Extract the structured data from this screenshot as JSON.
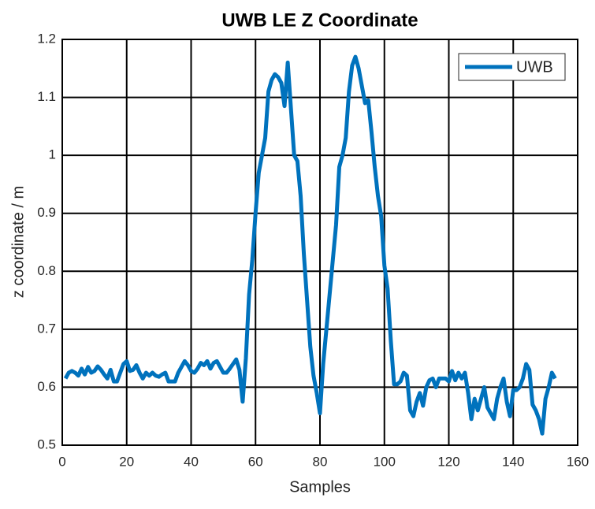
{
  "chart_data": {
    "type": "line",
    "title": "UWB LE Z Coordinate",
    "x_label": "Samples",
    "y_label": "z coordinate / m",
    "x": [
      1,
      2,
      3,
      4,
      5,
      6,
      7,
      8,
      9,
      10,
      11,
      12,
      13,
      14,
      15,
      16,
      17,
      18,
      19,
      20,
      21,
      22,
      23,
      24,
      25,
      26,
      27,
      28,
      29,
      30,
      31,
      32,
      33,
      34,
      35,
      36,
      37,
      38,
      39,
      40,
      41,
      42,
      43,
      44,
      45,
      46,
      47,
      48,
      49,
      50,
      51,
      52,
      53,
      54,
      55,
      56,
      57,
      58,
      59,
      60,
      61,
      62,
      63,
      64,
      65,
      66,
      67,
      68,
      69,
      70,
      71,
      72,
      73,
      74,
      75,
      76,
      77,
      78,
      79,
      80,
      81,
      82,
      83,
      84,
      85,
      86,
      87,
      88,
      89,
      90,
      91,
      92,
      93,
      94,
      95,
      96,
      97,
      98,
      99,
      100,
      101,
      102,
      103,
      104,
      105,
      106,
      107,
      108,
      109,
      110,
      111,
      112,
      113,
      114,
      115,
      116,
      117,
      118,
      119,
      120,
      121,
      122,
      123,
      124,
      125,
      126,
      127,
      128,
      129,
      130,
      131,
      132,
      133,
      134,
      135,
      136,
      137,
      138,
      139,
      140,
      141,
      142,
      143,
      144,
      145,
      146,
      147,
      148,
      149,
      150,
      151,
      152,
      153
    ],
    "series": [
      {
        "name": "UWB",
        "color": "#0072bd",
        "values": [
          0.615,
          0.625,
          0.628,
          0.625,
          0.62,
          0.632,
          0.622,
          0.635,
          0.625,
          0.628,
          0.636,
          0.63,
          0.622,
          0.615,
          0.63,
          0.61,
          0.61,
          0.625,
          0.64,
          0.645,
          0.628,
          0.63,
          0.638,
          0.625,
          0.615,
          0.625,
          0.62,
          0.625,
          0.62,
          0.618,
          0.622,
          0.625,
          0.61,
          0.61,
          0.61,
          0.625,
          0.635,
          0.645,
          0.638,
          0.628,
          0.625,
          0.632,
          0.642,
          0.638,
          0.645,
          0.632,
          0.642,
          0.645,
          0.635,
          0.625,
          0.625,
          0.632,
          0.64,
          0.648,
          0.63,
          0.575,
          0.65,
          0.76,
          0.82,
          0.9,
          0.97,
          1.0,
          1.03,
          1.11,
          1.13,
          1.14,
          1.135,
          1.125,
          1.085,
          1.16,
          1.08,
          1.0,
          0.99,
          0.93,
          0.83,
          0.75,
          0.67,
          0.62,
          0.59,
          0.555,
          0.64,
          0.7,
          0.76,
          0.82,
          0.88,
          0.98,
          1.0,
          1.03,
          1.11,
          1.155,
          1.17,
          1.15,
          1.12,
          1.09,
          1.095,
          1.04,
          0.98,
          0.93,
          0.895,
          0.81,
          0.77,
          0.68,
          0.605,
          0.605,
          0.61,
          0.625,
          0.62,
          0.56,
          0.55,
          0.575,
          0.59,
          0.568,
          0.6,
          0.612,
          0.615,
          0.6,
          0.615,
          0.615,
          0.615,
          0.61,
          0.628,
          0.612,
          0.625,
          0.615,
          0.625,
          0.59,
          0.545,
          0.58,
          0.56,
          0.58,
          0.6,
          0.565,
          0.555,
          0.545,
          0.58,
          0.6,
          0.615,
          0.575,
          0.55,
          0.595,
          0.595,
          0.6,
          0.615,
          0.64,
          0.63,
          0.57,
          0.56,
          0.545,
          0.52,
          0.58,
          0.6,
          0.625,
          0.615
        ]
      }
    ],
    "xlim": [
      0,
      160
    ],
    "xticks": [
      0,
      20,
      40,
      60,
      80,
      100,
      120,
      140,
      160
    ],
    "ylim": [
      0.5,
      1.2
    ],
    "yticks": [
      0.5,
      0.6,
      0.7,
      0.8,
      0.9,
      1,
      1.1,
      1.2
    ],
    "grid": true,
    "legend": "top-right"
  }
}
